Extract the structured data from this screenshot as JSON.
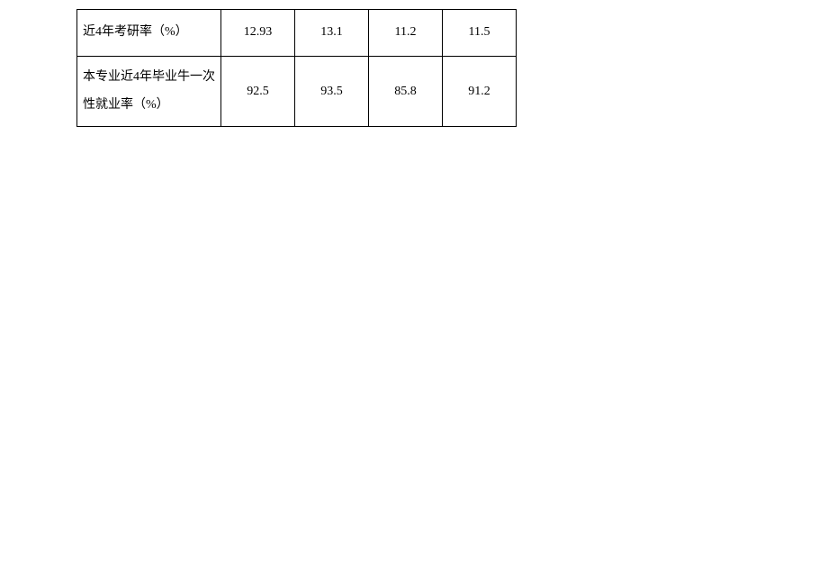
{
  "table": {
    "border_color": "#000000",
    "background_color": "#ffffff",
    "text_color": "#000000",
    "font_size": 14,
    "columns": {
      "label_width": 160,
      "value_width": 82,
      "value_align": "center",
      "label_align": "left"
    },
    "rows": [
      {
        "label": "近4年考研率（%）",
        "values": [
          "12.93",
          "13.1",
          "11.2",
          "11.5"
        ]
      },
      {
        "label": "本专业近4年毕业牛一次性就业率（%）",
        "values": [
          "92.5",
          "93.5",
          "85.8",
          "91.2"
        ]
      }
    ]
  }
}
